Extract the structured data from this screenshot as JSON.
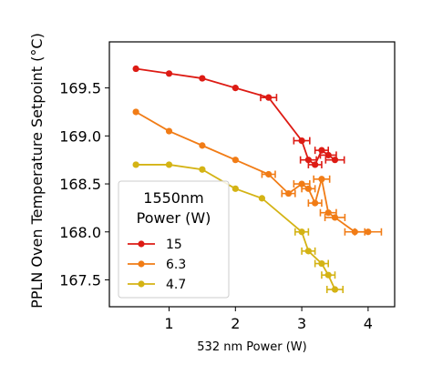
{
  "chart_data": {
    "type": "scatter",
    "xlabel": "532 nm Power (W)",
    "ylabel": "PPLN Oven Temperature Setpoint (°C)",
    "xlim": [
      0.1,
      4.4
    ],
    "ylim": [
      167.22,
      169.98
    ],
    "xticks": [
      1,
      2,
      3,
      4
    ],
    "xtick_labels": [
      "1",
      "2",
      "3",
      "4"
    ],
    "yticks": [
      167.5,
      168.0,
      168.5,
      169.0,
      169.5
    ],
    "ytick_labels": [
      "167.5",
      "168.0",
      "168.5",
      "169.0",
      "169.5"
    ],
    "grid": false,
    "legend": {
      "title": "1550nm\nPower (W)",
      "title_lines": [
        "1550nm",
        "Power (W)"
      ],
      "placement": "lower-left"
    },
    "series": [
      {
        "name": "15",
        "color": "#dd1b14",
        "points": [
          {
            "x": 0.5,
            "y": 169.7,
            "xerr": 0.0
          },
          {
            "x": 1.0,
            "y": 169.65,
            "xerr": 0.0
          },
          {
            "x": 1.5,
            "y": 169.6,
            "xerr": 0.0
          },
          {
            "x": 2.0,
            "y": 169.5,
            "xerr": 0.0
          },
          {
            "x": 2.5,
            "y": 169.4,
            "xerr": 0.12
          },
          {
            "x": 3.0,
            "y": 168.95,
            "xerr": 0.12
          },
          {
            "x": 3.1,
            "y": 168.75,
            "xerr": 0.12
          },
          {
            "x": 3.2,
            "y": 168.7,
            "xerr": 0.1
          },
          {
            "x": 3.3,
            "y": 168.85,
            "xerr": 0.1
          },
          {
            "x": 3.4,
            "y": 168.8,
            "xerr": 0.12
          },
          {
            "x": 3.5,
            "y": 168.75,
            "xerr": 0.14
          }
        ]
      },
      {
        "name": "6.3",
        "color": "#f17c16",
        "points": [
          {
            "x": 0.5,
            "y": 169.25,
            "xerr": 0.0
          },
          {
            "x": 1.0,
            "y": 169.05,
            "xerr": 0.0
          },
          {
            "x": 1.5,
            "y": 168.9,
            "xerr": 0.0
          },
          {
            "x": 2.0,
            "y": 168.75,
            "xerr": 0.0
          },
          {
            "x": 2.5,
            "y": 168.6,
            "xerr": 0.1
          },
          {
            "x": 2.8,
            "y": 168.4,
            "xerr": 0.1
          },
          {
            "x": 3.0,
            "y": 168.5,
            "xerr": 0.12
          },
          {
            "x": 3.1,
            "y": 168.45,
            "xerr": 0.1
          },
          {
            "x": 3.2,
            "y": 168.3,
            "xerr": 0.1
          },
          {
            "x": 3.3,
            "y": 168.55,
            "xerr": 0.12
          },
          {
            "x": 3.4,
            "y": 168.2,
            "xerr": 0.12
          },
          {
            "x": 3.5,
            "y": 168.15,
            "xerr": 0.15
          },
          {
            "x": 3.8,
            "y": 168.0,
            "xerr": 0.15
          },
          {
            "x": 4.0,
            "y": 168.0,
            "xerr": 0.2
          }
        ]
      },
      {
        "name": "4.7",
        "color": "#d4b314",
        "points": [
          {
            "x": 0.5,
            "y": 168.7,
            "xerr": 0.0
          },
          {
            "x": 1.0,
            "y": 168.7,
            "xerr": 0.0
          },
          {
            "x": 1.5,
            "y": 168.65,
            "xerr": 0.0
          },
          {
            "x": 2.0,
            "y": 168.45,
            "xerr": 0.0
          },
          {
            "x": 2.4,
            "y": 168.35,
            "xerr": 0.0
          },
          {
            "x": 3.0,
            "y": 168.0,
            "xerr": 0.1
          },
          {
            "x": 3.1,
            "y": 167.8,
            "xerr": 0.1
          },
          {
            "x": 3.3,
            "y": 167.67,
            "xerr": 0.1
          },
          {
            "x": 3.4,
            "y": 167.55,
            "xerr": 0.1
          },
          {
            "x": 3.5,
            "y": 167.4,
            "xerr": 0.12
          }
        ]
      }
    ]
  }
}
